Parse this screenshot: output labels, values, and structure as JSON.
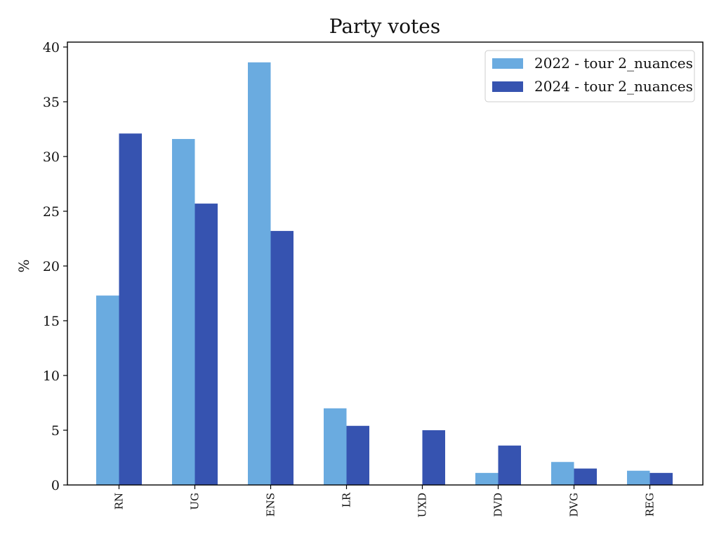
{
  "chart_data": {
    "type": "bar",
    "title": "Party votes",
    "xlabel": "",
    "ylabel": "%",
    "categories": [
      "RN",
      "UG",
      "ENS",
      "LR",
      "UXD",
      "DVD",
      "DVG",
      "REG"
    ],
    "series": [
      {
        "name": "2022 - tour 2_nuances",
        "color": "#6aabe0",
        "values": [
          17.3,
          31.6,
          38.6,
          7.0,
          null,
          1.1,
          2.1,
          1.3
        ]
      },
      {
        "name": "2024 - tour 2_nuances",
        "color": "#3653b0",
        "values": [
          32.1,
          25.7,
          23.2,
          5.4,
          5.0,
          3.6,
          1.5,
          1.1
        ]
      }
    ],
    "ylim": [
      0,
      40
    ],
    "yticks": [
      0,
      5,
      10,
      15,
      20,
      25,
      30,
      35,
      40
    ],
    "grid": false,
    "legend_position": "top-right"
  }
}
